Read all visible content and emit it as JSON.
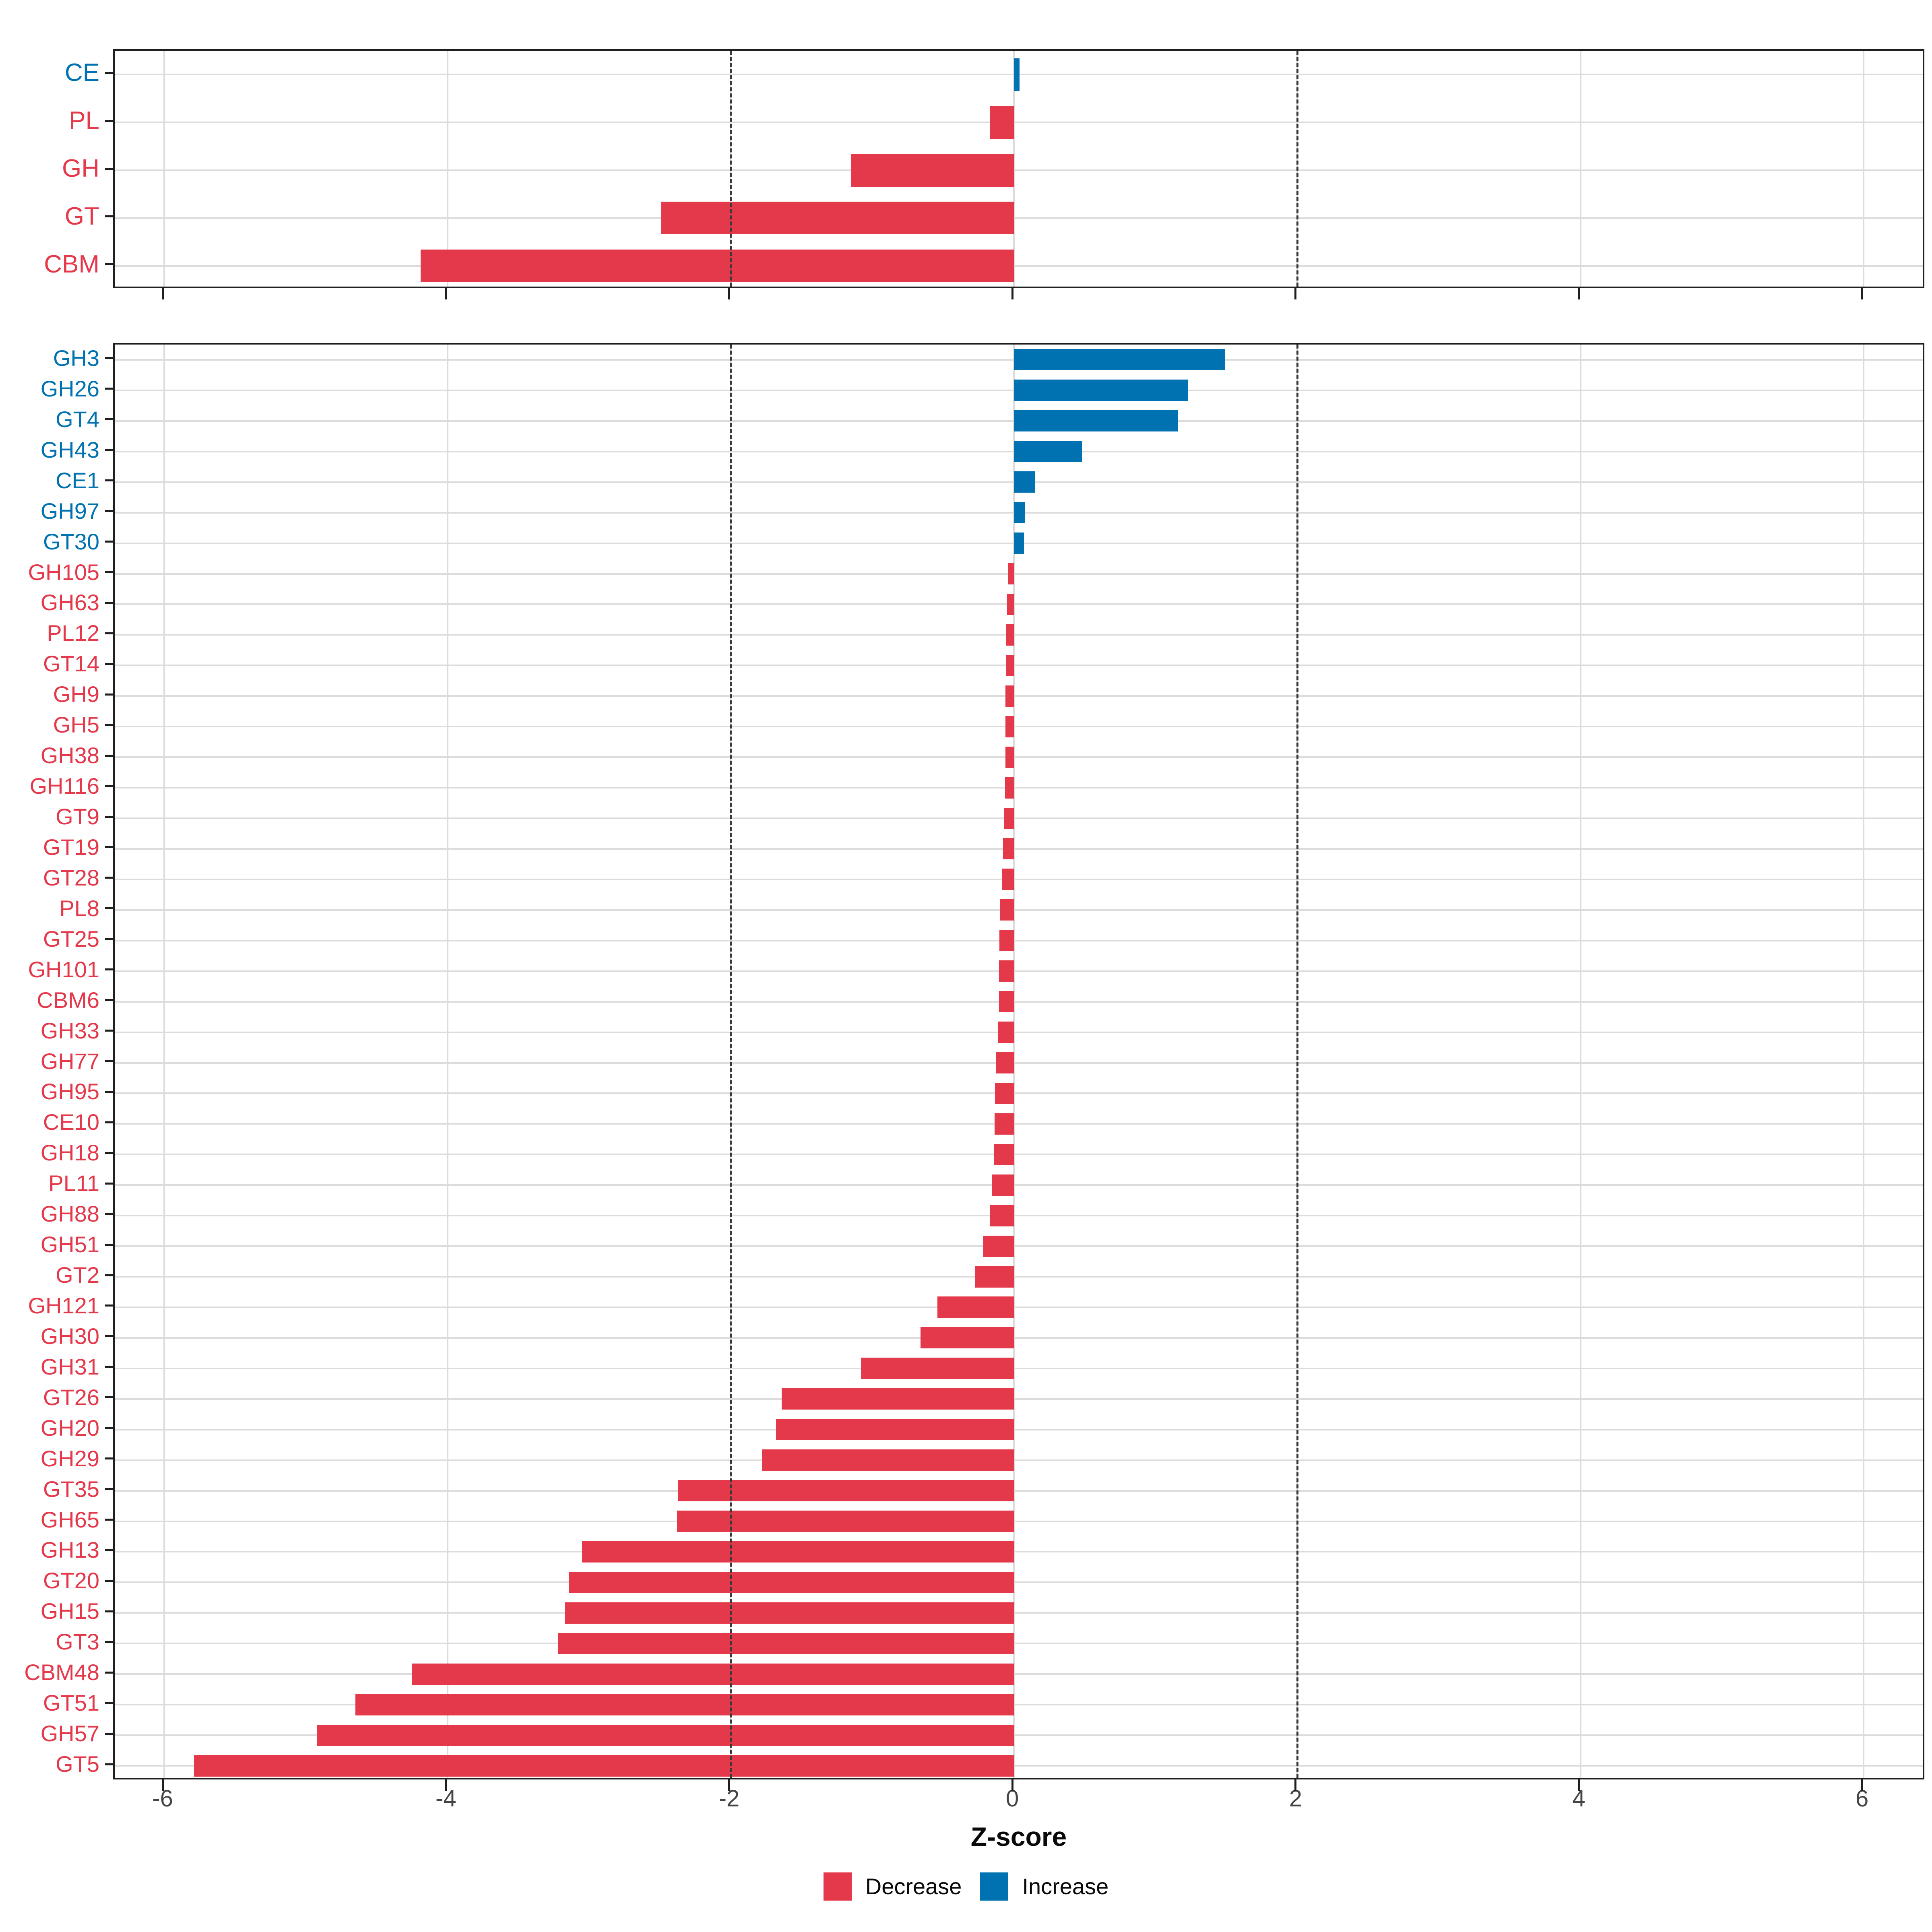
{
  "xlabel": "Z-score",
  "x_ticks": [
    -6,
    -4,
    -2,
    0,
    2,
    4,
    6
  ],
  "dashed_lines_at": [
    -2,
    2
  ],
  "xlim": [
    -6.35,
    6.44
  ],
  "colors": {
    "decrease": "#E4384B",
    "increase": "#0072B2",
    "grid": "#dcdcdc",
    "axis_text": "#454545",
    "panel_border": "#1f1f1f"
  },
  "legend": [
    {
      "label": "Decrease",
      "color": "#E4384B"
    },
    {
      "label": "Increase",
      "color": "#0072B2"
    }
  ],
  "chart_data": [
    {
      "type": "bar",
      "orientation": "horizontal",
      "title": "",
      "xlabel": "Z-score",
      "grid": true,
      "legend_position": "bottom",
      "categories": [
        "CE",
        "PL",
        "GH",
        "GT",
        "CBM"
      ],
      "values": [
        0.04,
        -0.17,
        -1.15,
        -2.49,
        -4.19
      ]
    },
    {
      "type": "bar",
      "orientation": "horizontal",
      "title": "",
      "xlabel": "Z-score",
      "grid": true,
      "legend_position": "bottom",
      "categories": [
        "GH3",
        "GH26",
        "GT4",
        "GH43",
        "CE1",
        "GH97",
        "GT30",
        "GH105",
        "GH63",
        "PL12",
        "GT14",
        "GH9",
        "GH5",
        "GH38",
        "GH116",
        "GT9",
        "GT19",
        "GT28",
        "PL8",
        "GT25",
        "GH101",
        "CBM6",
        "GH33",
        "GH77",
        "GH95",
        "CE10",
        "GH18",
        "PL11",
        "GH88",
        "GH51",
        "GT2",
        "GH121",
        "GH30",
        "GH31",
        "GT26",
        "GH20",
        "GH29",
        "GT35",
        "GH65",
        "GH13",
        "GT20",
        "GH15",
        "GT3",
        "CBM48",
        "GT51",
        "GH57",
        "GT5"
      ],
      "values": [
        1.49,
        1.23,
        1.16,
        0.48,
        0.15,
        0.08,
        0.07,
        -0.04,
        -0.05,
        -0.055,
        -0.058,
        -0.06,
        -0.06,
        -0.06,
        -0.062,
        -0.068,
        -0.076,
        -0.085,
        -0.1,
        -0.104,
        -0.105,
        -0.106,
        -0.113,
        -0.126,
        -0.134,
        -0.137,
        -0.144,
        -0.155,
        -0.17,
        -0.216,
        -0.272,
        -0.54,
        -0.66,
        -1.08,
        -1.64,
        -1.68,
        -1.78,
        -2.37,
        -2.38,
        -3.05,
        -3.14,
        -3.17,
        -3.22,
        -4.25,
        -4.65,
        -4.92,
        -5.79
      ]
    }
  ]
}
